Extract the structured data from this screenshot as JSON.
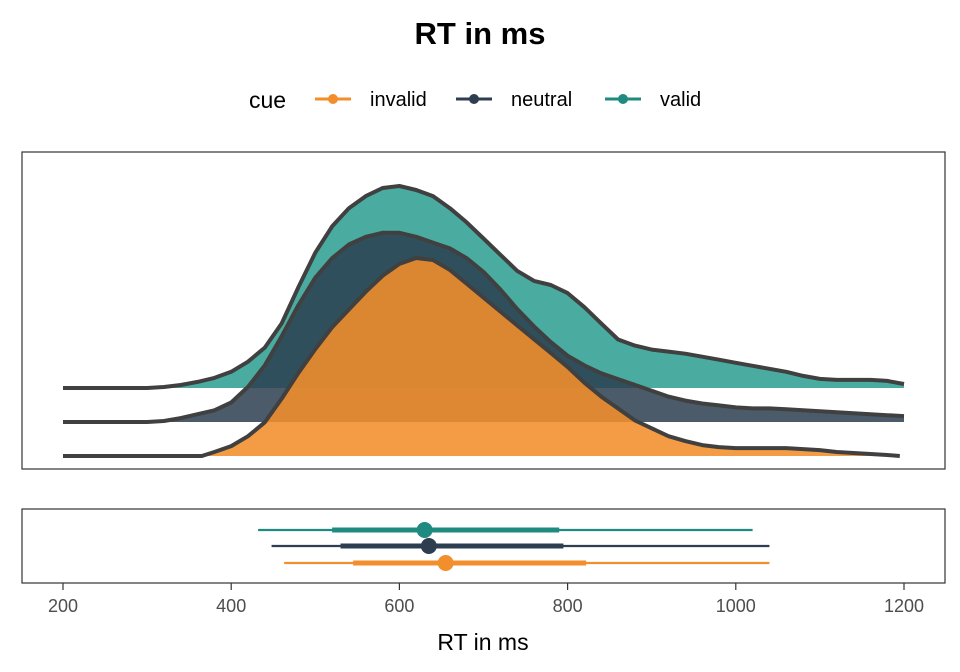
{
  "chart_data": {
    "type": "density ridgeline + interval",
    "title": "RT in ms",
    "xlabel": "RT in ms",
    "ylabel": "",
    "xlim": [
      200,
      1200
    ],
    "xticks": [
      200,
      400,
      600,
      800,
      1000,
      1200
    ],
    "grid": false,
    "legend": {
      "title": "cue",
      "position": "top",
      "entries": [
        "invalid",
        "neutral",
        "valid"
      ]
    },
    "series": [
      {
        "name": "invalid",
        "color": "#F28E2B",
        "fill_color": "#F28E2B",
        "density_range": [
          365,
          1195
        ],
        "density": [
          [
            200,
            0
          ],
          [
            365,
            0
          ],
          [
            380,
            0.02
          ],
          [
            400,
            0.05
          ],
          [
            420,
            0.1
          ],
          [
            440,
            0.17
          ],
          [
            460,
            0.29
          ],
          [
            480,
            0.42
          ],
          [
            500,
            0.54
          ],
          [
            520,
            0.65
          ],
          [
            540,
            0.74
          ],
          [
            560,
            0.83
          ],
          [
            580,
            0.91
          ],
          [
            600,
            0.97
          ],
          [
            620,
            1.0
          ],
          [
            640,
            0.99
          ],
          [
            660,
            0.94
          ],
          [
            680,
            0.87
          ],
          [
            700,
            0.8
          ],
          [
            720,
            0.73
          ],
          [
            740,
            0.66
          ],
          [
            760,
            0.59
          ],
          [
            780,
            0.52
          ],
          [
            800,
            0.45
          ],
          [
            820,
            0.37
          ],
          [
            840,
            0.3
          ],
          [
            860,
            0.24
          ],
          [
            880,
            0.18
          ],
          [
            900,
            0.14
          ],
          [
            920,
            0.1
          ],
          [
            940,
            0.075
          ],
          [
            960,
            0.055
          ],
          [
            980,
            0.045
          ],
          [
            1000,
            0.04
          ],
          [
            1020,
            0.04
          ],
          [
            1040,
            0.04
          ],
          [
            1060,
            0.04
          ],
          [
            1080,
            0.035
          ],
          [
            1100,
            0.03
          ],
          [
            1120,
            0.02
          ],
          [
            1140,
            0.015
          ],
          [
            1160,
            0.01
          ],
          [
            1180,
            0.005
          ],
          [
            1195,
            0
          ]
        ],
        "median": 655,
        "interval_66": [
          545,
          822
        ],
        "interval_95": [
          463,
          1040
        ]
      },
      {
        "name": "neutral",
        "color": "#2C3E50",
        "fill_color": "#2C3E50",
        "density_range": [
          200,
          1200
        ],
        "density": [
          [
            200,
            0
          ],
          [
            250,
            0
          ],
          [
            300,
            0
          ],
          [
            320,
            0.005
          ],
          [
            340,
            0.02
          ],
          [
            360,
            0.04
          ],
          [
            380,
            0.06
          ],
          [
            400,
            0.1
          ],
          [
            420,
            0.18
          ],
          [
            440,
            0.29
          ],
          [
            460,
            0.44
          ],
          [
            480,
            0.6
          ],
          [
            500,
            0.74
          ],
          [
            520,
            0.84
          ],
          [
            540,
            0.91
          ],
          [
            560,
            0.95
          ],
          [
            580,
            0.97
          ],
          [
            600,
            0.97
          ],
          [
            620,
            0.95
          ],
          [
            640,
            0.92
          ],
          [
            660,
            0.89
          ],
          [
            680,
            0.84
          ],
          [
            700,
            0.77
          ],
          [
            720,
            0.68
          ],
          [
            740,
            0.58
          ],
          [
            760,
            0.49
          ],
          [
            780,
            0.41
          ],
          [
            800,
            0.34
          ],
          [
            820,
            0.29
          ],
          [
            840,
            0.25
          ],
          [
            860,
            0.22
          ],
          [
            880,
            0.19
          ],
          [
            900,
            0.16
          ],
          [
            920,
            0.13
          ],
          [
            940,
            0.11
          ],
          [
            960,
            0.095
          ],
          [
            980,
            0.085
          ],
          [
            1000,
            0.075
          ],
          [
            1020,
            0.07
          ],
          [
            1040,
            0.07
          ],
          [
            1060,
            0.065
          ],
          [
            1080,
            0.06
          ],
          [
            1100,
            0.055
          ],
          [
            1120,
            0.05
          ],
          [
            1140,
            0.045
          ],
          [
            1160,
            0.04
          ],
          [
            1180,
            0.035
          ],
          [
            1200,
            0.03
          ]
        ],
        "median": 635,
        "interval_66": [
          530,
          795
        ],
        "interval_95": [
          448,
          1040
        ]
      },
      {
        "name": "valid",
        "color": "#1F8A7F",
        "fill_color": "#2A9D8F",
        "density_range": [
          200,
          1200
        ],
        "density": [
          [
            200,
            0
          ],
          [
            250,
            0
          ],
          [
            300,
            0
          ],
          [
            320,
            0.005
          ],
          [
            340,
            0.015
          ],
          [
            360,
            0.03
          ],
          [
            380,
            0.05
          ],
          [
            400,
            0.08
          ],
          [
            420,
            0.13
          ],
          [
            440,
            0.2
          ],
          [
            460,
            0.32
          ],
          [
            480,
            0.5
          ],
          [
            500,
            0.67
          ],
          [
            520,
            0.8
          ],
          [
            540,
            0.89
          ],
          [
            560,
            0.95
          ],
          [
            580,
            0.99
          ],
          [
            600,
            1.0
          ],
          [
            620,
            0.98
          ],
          [
            640,
            0.95
          ],
          [
            660,
            0.89
          ],
          [
            680,
            0.82
          ],
          [
            700,
            0.74
          ],
          [
            720,
            0.66
          ],
          [
            740,
            0.58
          ],
          [
            760,
            0.53
          ],
          [
            780,
            0.51
          ],
          [
            800,
            0.47
          ],
          [
            820,
            0.4
          ],
          [
            840,
            0.32
          ],
          [
            860,
            0.24
          ],
          [
            880,
            0.21
          ],
          [
            900,
            0.19
          ],
          [
            920,
            0.18
          ],
          [
            940,
            0.17
          ],
          [
            960,
            0.155
          ],
          [
            980,
            0.14
          ],
          [
            1000,
            0.125
          ],
          [
            1020,
            0.11
          ],
          [
            1040,
            0.095
          ],
          [
            1060,
            0.08
          ],
          [
            1080,
            0.06
          ],
          [
            1100,
            0.045
          ],
          [
            1120,
            0.04
          ],
          [
            1140,
            0.04
          ],
          [
            1160,
            0.04
          ],
          [
            1180,
            0.035
          ],
          [
            1200,
            0.02
          ]
        ],
        "median": 630,
        "interval_66": [
          520,
          790
        ],
        "interval_95": [
          432,
          1020
        ]
      }
    ]
  }
}
